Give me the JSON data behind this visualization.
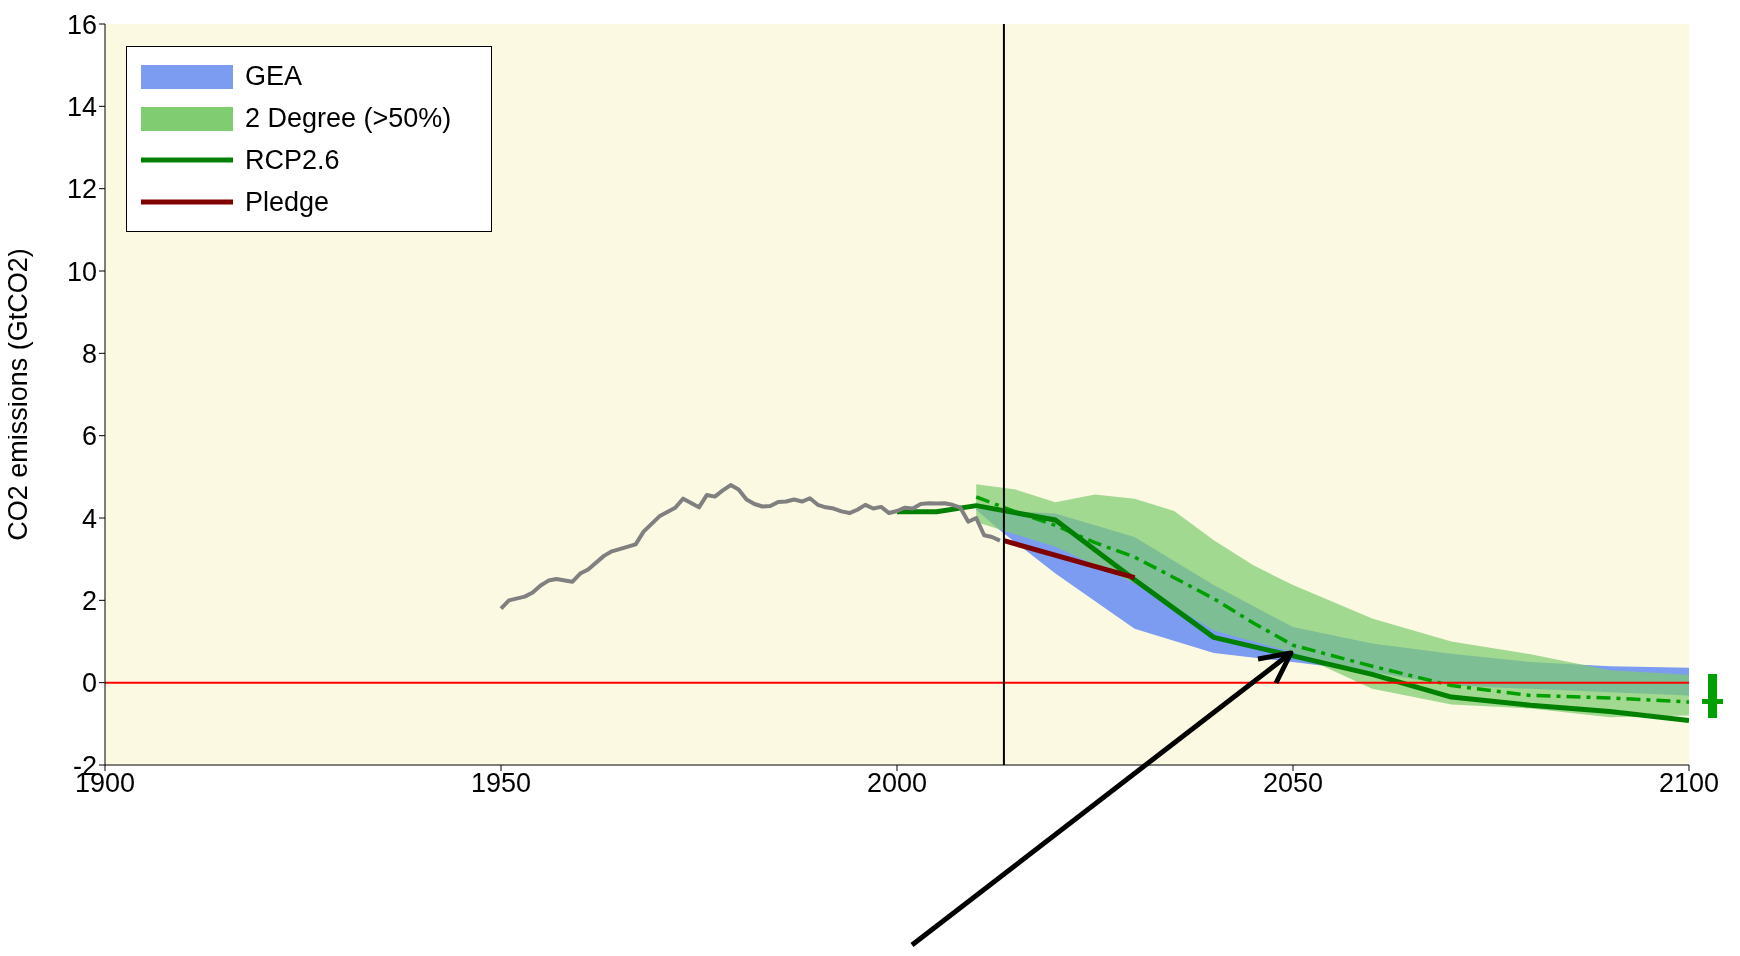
{
  "chart_data": {
    "type": "line",
    "ylabel": "CO2 emissions (GtCO2)",
    "xlim": [
      1900,
      2100
    ],
    "xticks": [
      1900,
      1950,
      2000,
      2050,
      2100
    ],
    "ylim": [
      -2,
      16
    ],
    "yticks": [
      -2,
      0,
      2,
      4,
      6,
      8,
      10,
      12,
      14,
      16
    ],
    "legend": "top left",
    "series": [
      {
        "name": "GEA",
        "type": "area",
        "color": "#7b9cf0",
        "x": [
          2010,
          2013,
          2020,
          2030,
          2040,
          2050,
          2060,
          2070,
          2080,
          2090,
          2100
        ],
        "values": [
          null,
          null,
          null,
          null,
          null,
          null,
          null,
          null,
          null,
          null,
          null
        ],
        "lower": [
          4.2,
          3.7,
          2.65,
          1.31,
          0.72,
          0.5,
          0.26,
          -0.07,
          -0.15,
          -0.23,
          -0.31
        ],
        "upper": [
          4.22,
          4.18,
          4.11,
          3.54,
          2.37,
          1.35,
          0.95,
          0.7,
          0.5,
          0.4,
          0.36
        ]
      },
      {
        "name": "2 Degree (>50%)",
        "type": "area",
        "color": "#80cc70",
        "x": [
          2010,
          2015,
          2020,
          2025,
          2030,
          2035,
          2040,
          2045,
          2050,
          2060,
          2070,
          2080,
          2090,
          2100
        ],
        "values": [
          null,
          null,
          null,
          null,
          null,
          null,
          null,
          null,
          null,
          null,
          null,
          null,
          null,
          null
        ],
        "lower": [
          3.9,
          3.6,
          3.3,
          2.85,
          2.41,
          1.85,
          1.27,
          1.0,
          0.74,
          -0.15,
          -0.53,
          -0.63,
          -0.84,
          -0.8
        ],
        "upper": [
          4.82,
          4.69,
          4.38,
          4.57,
          4.47,
          4.17,
          3.46,
          2.85,
          2.37,
          1.56,
          1.0,
          0.69,
          0.3,
          0.19
        ]
      },
      {
        "type": "line",
        "color": "#00a000",
        "line_style": "dashed",
        "x": [
          2010,
          2015,
          2020,
          2025,
          2030,
          2035,
          2040,
          2045,
          2050,
          2060,
          2070,
          2080,
          2090,
          2100
        ],
        "values": [
          4.51,
          4.15,
          3.82,
          3.4,
          3.05,
          2.55,
          2.04,
          1.45,
          0.91,
          0.4,
          -0.07,
          -0.31,
          -0.37,
          -0.47
        ]
      },
      {
        "name": "RCP2.6",
        "type": "line",
        "color": "#008000",
        "x": [
          2000,
          2005,
          2010,
          2020,
          2030,
          2040,
          2050,
          2060,
          2070,
          2080,
          2090,
          2100
        ],
        "values": [
          4.15,
          4.15,
          4.3,
          3.95,
          2.5,
          1.1,
          0.65,
          0.2,
          -0.35,
          -0.55,
          -0.7,
          -0.92
        ]
      },
      {
        "name": "Pledge",
        "type": "line",
        "color": "#800000",
        "x": [
          2013.5,
          2030
        ],
        "values": [
          3.45,
          2.55
        ]
      },
      {
        "type": "line",
        "color": "#808080",
        "x": [
          1950,
          1951,
          1953,
          1954,
          1955,
          1956,
          1957,
          1959,
          1960,
          1961,
          1963,
          1964,
          1967,
          1968,
          1970,
          1972,
          1973,
          1975,
          1976,
          1977,
          1978,
          1979,
          1980,
          1981,
          1982,
          1983,
          1984,
          1985,
          1986,
          1987,
          1988,
          1989,
          1990,
          1991,
          1992,
          1993,
          1994,
          1995,
          1996,
          1997,
          1998,
          1999,
          2000,
          2001,
          2002,
          2003,
          2004,
          2005,
          2006,
          2007,
          2008,
          2009,
          2010,
          2011,
          2012,
          2013
        ],
        "values": [
          1.8,
          2.0,
          2.09,
          2.19,
          2.36,
          2.48,
          2.52,
          2.45,
          2.65,
          2.75,
          3.08,
          3.19,
          3.36,
          3.67,
          4.04,
          4.25,
          4.47,
          4.26,
          4.56,
          4.52,
          4.67,
          4.8,
          4.69,
          4.45,
          4.34,
          4.28,
          4.29,
          4.39,
          4.4,
          4.45,
          4.4,
          4.48,
          4.32,
          4.26,
          4.23,
          4.16,
          4.12,
          4.2,
          4.32,
          4.23,
          4.27,
          4.12,
          4.17,
          4.25,
          4.23,
          4.34,
          4.36,
          4.35,
          4.36,
          4.32,
          4.25,
          3.91,
          4.0,
          3.58,
          3.54,
          3.45
        ]
      }
    ],
    "ref_lines": [
      {
        "axis": "y",
        "value": 0,
        "color": "#ff0000"
      },
      {
        "axis": "x",
        "value": 2013.5,
        "color": "#000000"
      }
    ]
  }
}
